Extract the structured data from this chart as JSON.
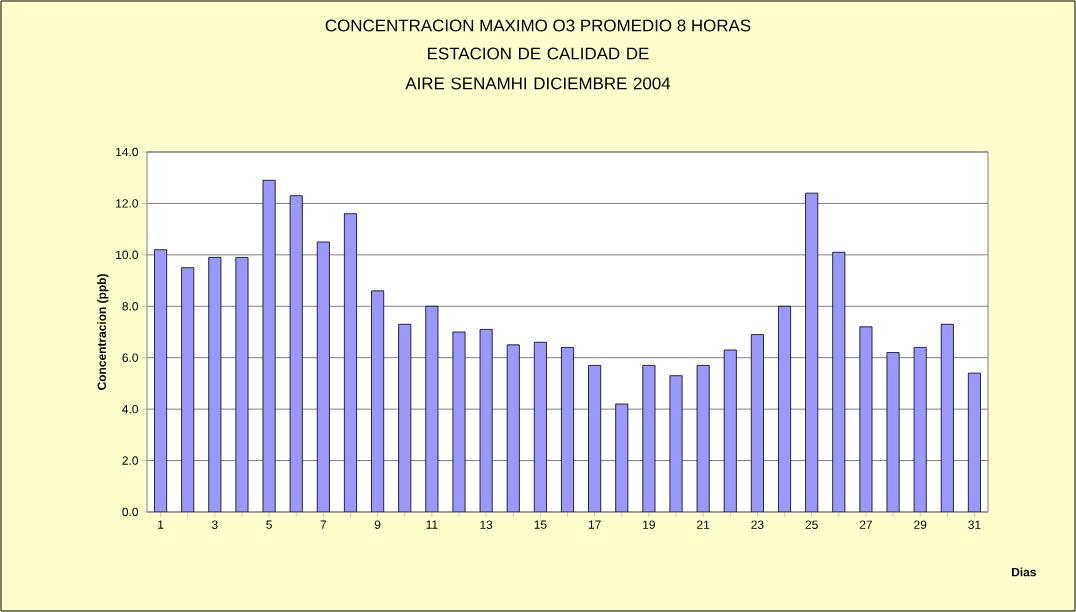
{
  "chart_data": {
    "type": "bar",
    "title": "CONCENTRACION MAXIMO O3 PROMEDIO 8 HORAS",
    "subtitle": "ESTACION DE CALIDAD DE AIRE SENAMHI DICIEMBRE 2004",
    "xlabel": "Dias",
    "ylabel": "Concentracion (ppb)",
    "categories": [
      "1",
      null,
      "3",
      null,
      "5",
      null,
      "7",
      null,
      "9",
      null,
      "11",
      null,
      "13",
      null,
      "15",
      null,
      "17",
      null,
      "19",
      null,
      "21",
      null,
      "23",
      null,
      "25",
      null,
      "27",
      null,
      "29",
      null,
      "31"
    ],
    "values": [
      10.2,
      9.5,
      9.9,
      9.9,
      12.9,
      12.3,
      10.5,
      11.6,
      8.6,
      7.3,
      8.0,
      7.0,
      7.1,
      6.5,
      6.6,
      6.4,
      5.7,
      4.2,
      5.7,
      5.3,
      5.7,
      6.3,
      6.9,
      8.0,
      12.4,
      10.1,
      7.2,
      6.2,
      6.4,
      7.3,
      5.4
    ],
    "color": "#9999ff",
    "ylim": [
      0,
      14
    ],
    "yticks": [
      {
        "value": 0,
        "label": "0.0"
      },
      {
        "value": 2,
        "label": "2.0"
      },
      {
        "value": 4,
        "label": "4.0"
      },
      {
        "value": 6,
        "label": "6.0"
      },
      {
        "value": 8,
        "label": "8.0"
      },
      {
        "value": 10,
        "label": "10.0"
      },
      {
        "value": 12,
        "label": "12.0"
      },
      {
        "value": 14,
        "label": "14.0"
      }
    ],
    "grid": "y"
  }
}
